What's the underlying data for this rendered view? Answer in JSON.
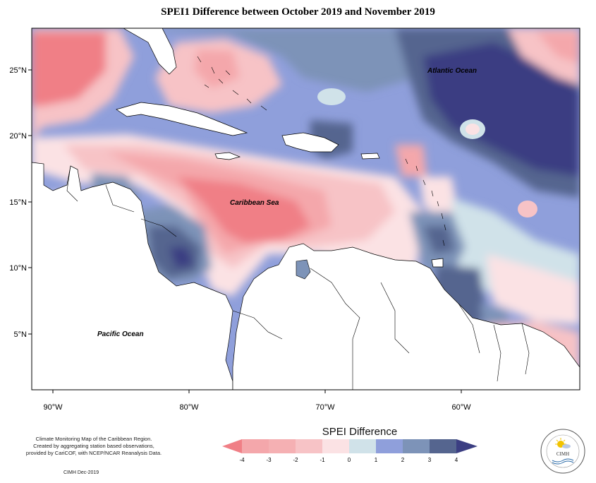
{
  "title": "SPEI1 Difference between October 2019 and November 2019",
  "map": {
    "lon_range": [
      -92,
      -52
    ],
    "lat_range": [
      1.5,
      28
    ],
    "x_ticks": [
      "90°W",
      "80°W",
      "70°W",
      "60°W"
    ],
    "y_ticks": [
      "25°N",
      "20°N",
      "15°N",
      "10°N",
      "5°N"
    ],
    "labels": {
      "atlantic": "Atlantic Ocean",
      "caribbean": "Caribbean Sea",
      "pacific": "Pacific Ocean"
    },
    "colors": {
      "-4": "#f07f86",
      "-3": "#f4a7ab",
      "-2": "#f7c3c6",
      "-1": "#fbe2e4",
      "0": "#d0e2e9",
      "1": "#8f9fdb",
      "2": "#7d93b8",
      "3": "#55658f",
      "4": "#3b3e82",
      "land": "#ffffff"
    }
  },
  "legend": {
    "title": "SPEI Difference",
    "ticks": [
      "-4",
      "-3",
      "-2",
      "-1",
      "0",
      "1",
      "2",
      "3",
      "4"
    ]
  },
  "credit": {
    "line1": "Climate Monitoring Map of the Caribbean Region.",
    "line2": "Created by aggregating station based observations,",
    "line3": "provided by CariCOF, with NCEP/NCAR Reanalysis Data.",
    "date": "CIMH Dec-2019"
  },
  "logo": {
    "text": "CIMH",
    "icon": "sun-cloud-icon"
  }
}
